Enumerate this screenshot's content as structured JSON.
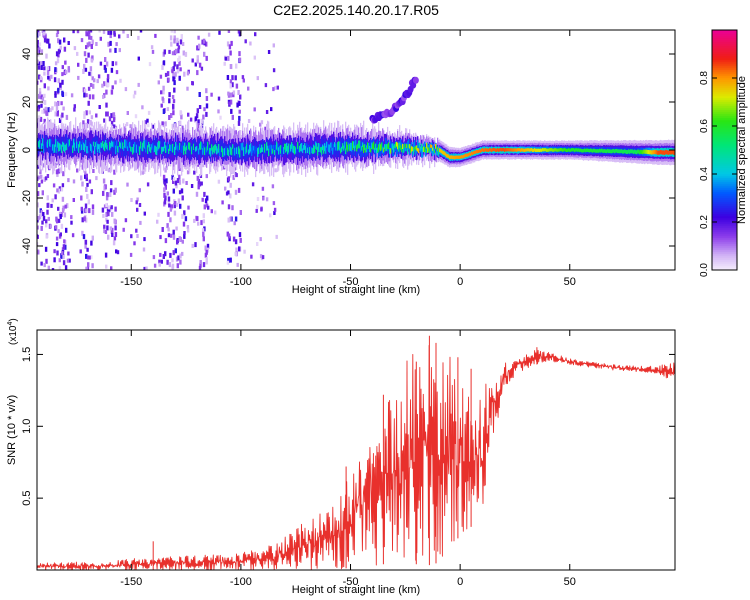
{
  "title": "C2E2.2025.140.20.17.R05",
  "colors": {
    "snr_line": "#e8302c",
    "axis": "#000000",
    "background": "#ffffff"
  },
  "chart_data": [
    {
      "type": "heatmap",
      "xlabel": "Height of straight line (km)",
      "ylabel": "Frequency (Hz)",
      "xlim": [
        -193,
        98
      ],
      "ylim": [
        -50,
        50
      ],
      "x_ticks": [
        -150,
        -100,
        -50,
        0,
        50
      ],
      "x_tick_labels": [
        "-150",
        "-100",
        "-50",
        "0",
        "50"
      ],
      "y_ticks": [
        -40,
        -20,
        0,
        20,
        40
      ],
      "y_tick_labels": [
        "-40",
        "-20",
        "0",
        "20",
        "40"
      ],
      "colorbar": {
        "label": "Normalized spectral amplitude",
        "range": [
          0,
          1
        ],
        "ticks": [
          0.0,
          0.2,
          0.4,
          0.6,
          0.8
        ],
        "tick_labels": [
          "0.0",
          "0.2",
          "0.4",
          "0.6",
          "0.8"
        ],
        "colormap": "rainbow (white-violet-blue-cyan-green-yellow-red-magenta)"
      },
      "main_band": {
        "center_frequency_hz": [
          [
            -190,
            2
          ],
          [
            -100,
            0
          ],
          [
            -50,
            1
          ],
          [
            -25,
            1
          ],
          [
            -10,
            0
          ],
          [
            -5,
            -3
          ],
          [
            0,
            -3
          ],
          [
            10,
            0
          ],
          [
            50,
            0
          ],
          [
            90,
            -1
          ]
        ],
        "half_width_hz": [
          [
            -190,
            3
          ],
          [
            -100,
            3
          ],
          [
            -50,
            3
          ],
          [
            -20,
            2
          ],
          [
            0,
            1.5
          ],
          [
            50,
            1.5
          ],
          [
            95,
            2
          ]
        ],
        "peak_amplitude": [
          [
            -190,
            0.45
          ],
          [
            -60,
            0.5
          ],
          [
            -20,
            0.7
          ],
          [
            0,
            0.8
          ],
          [
            20,
            0.85
          ],
          [
            50,
            0.6
          ],
          [
            80,
            0.55
          ],
          [
            90,
            0.85
          ]
        ]
      },
      "secondary_feature": {
        "description": "rising branch from about -40 km to -19 km",
        "points": [
          [
            -40,
            13
          ],
          [
            -30,
            17
          ],
          [
            -25,
            22
          ],
          [
            -20,
            30
          ]
        ]
      },
      "noise_columns_km": [
        -190,
        -182,
        -170,
        -160,
        -133,
        -128,
        -118,
        -103
      ]
    },
    {
      "type": "line",
      "xlabel": "Height of straight line (km)",
      "ylabel": "SNR (10 * v/v)",
      "y_multiplier": "(x10^4)",
      "multiplier_base": "(x10",
      "multiplier_exp": "4",
      "multiplier_close": ")",
      "xlim": [
        -193,
        98
      ],
      "ylim": [
        0,
        1.67
      ],
      "x_ticks": [
        -150,
        -100,
        -50,
        0,
        50
      ],
      "x_tick_labels": [
        "-150",
        "-100",
        "-50",
        "0",
        "50"
      ],
      "y_ticks": [
        0.5,
        1.0,
        1.5
      ],
      "y_tick_labels": [
        "0.5",
        "1.0",
        "1.5"
      ],
      "envelope": {
        "x": [
          -193,
          -160,
          -150,
          -140,
          -120,
          -100,
          -85,
          -75,
          -65,
          -55,
          -50,
          -45,
          -40,
          -35,
          -30,
          -25,
          -20,
          -15,
          -10,
          -5,
          0,
          5,
          10,
          15,
          20,
          25,
          30,
          35,
          40,
          50,
          60,
          70,
          80,
          90,
          98
        ],
        "low": [
          0.0,
          0.0,
          0.0,
          0.0,
          0.0,
          0.0,
          0.0,
          0.0,
          0.0,
          0.0,
          0.02,
          0.02,
          0.03,
          0.04,
          0.03,
          0.06,
          0.04,
          0.03,
          0.05,
          0.1,
          0.25,
          0.3,
          0.35,
          0.9,
          1.25,
          1.35,
          1.4,
          1.43,
          1.45,
          1.43,
          1.41,
          1.39,
          1.38,
          1.37,
          1.3
        ],
        "high": [
          0.05,
          0.06,
          0.08,
          0.09,
          0.1,
          0.12,
          0.18,
          0.3,
          0.38,
          0.5,
          0.7,
          0.9,
          1.15,
          1.25,
          1.3,
          1.45,
          1.55,
          1.63,
          1.55,
          1.5,
          1.3,
          1.28,
          1.3,
          1.38,
          1.45,
          1.47,
          1.5,
          1.55,
          1.52,
          1.47,
          1.45,
          1.43,
          1.42,
          1.42,
          1.45
        ]
      },
      "spikes": [
        [
          -140,
          0.2
        ],
        [
          -52,
          0.72
        ],
        [
          -35,
          1.22
        ],
        [
          -20,
          1.45
        ],
        [
          -14,
          1.63
        ],
        [
          -11,
          1.58
        ],
        [
          -1,
          1.48
        ],
        [
          5,
          1.4
        ],
        [
          35,
          1.55
        ]
      ]
    }
  ]
}
